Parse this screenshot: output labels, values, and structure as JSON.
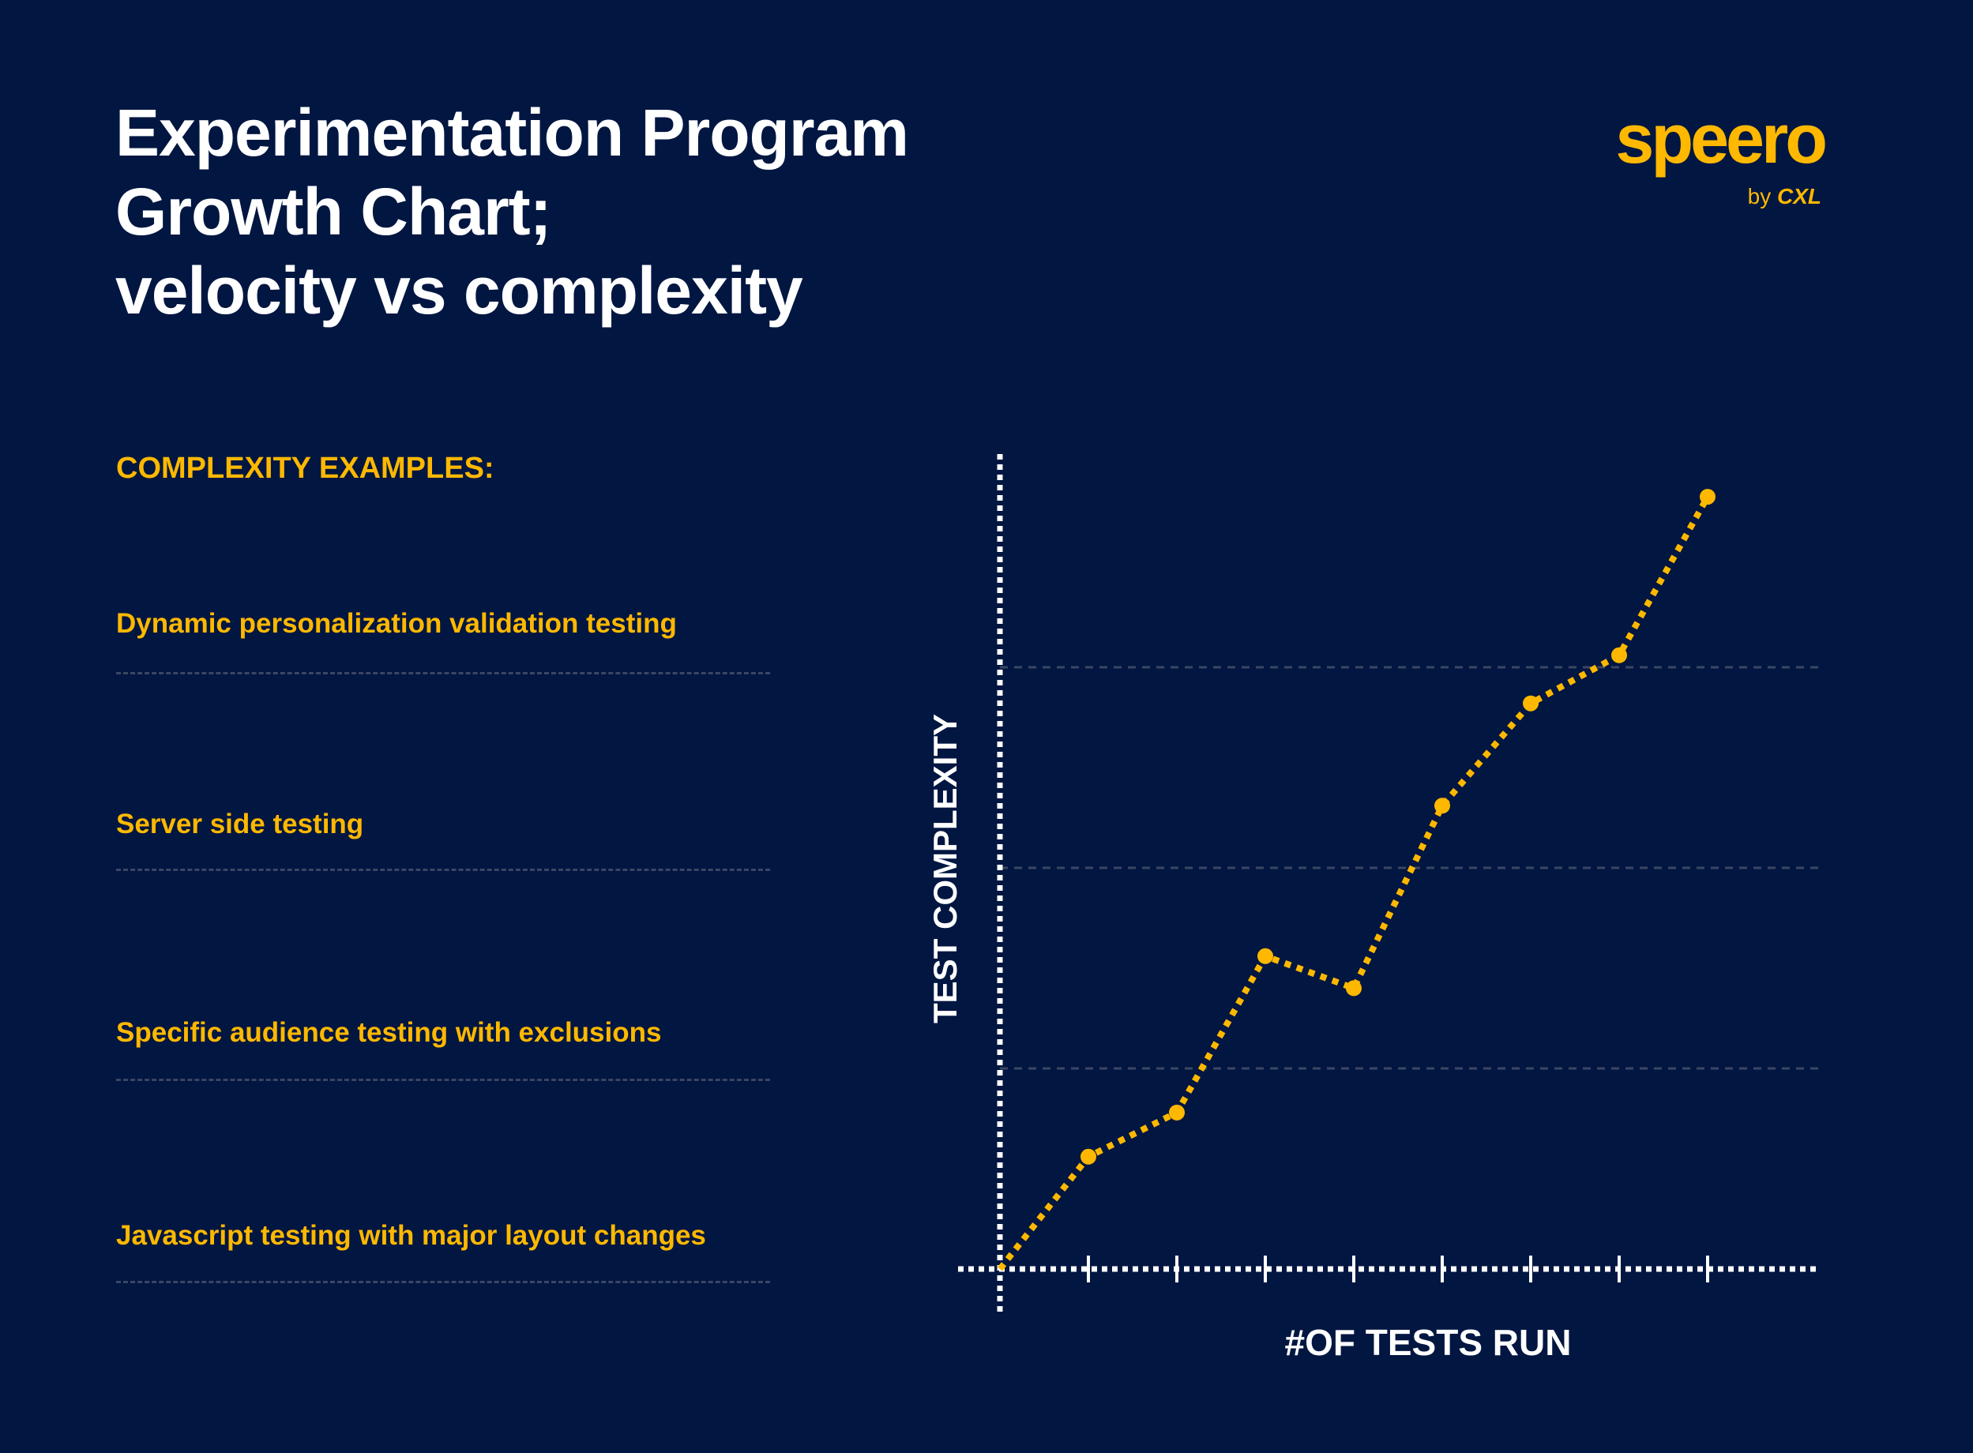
{
  "title_lines": [
    "Experimentation Program",
    "Growth Chart;",
    "velocity vs complexity"
  ],
  "logo": {
    "word": "speero",
    "by": "by",
    "brand": "CXL"
  },
  "colors": {
    "background": "#011641",
    "accent": "#FFB800",
    "axis": "#FFFFFF",
    "grid": "#3B4663"
  },
  "examples": {
    "heading": "COMPLEXITY EXAMPLES:",
    "items": [
      "Dynamic personalization validation testing",
      "Server side testing",
      "Specific audience testing with exclusions",
      "Javascript testing with major layout changes"
    ]
  },
  "chart_data": {
    "type": "line",
    "title": "",
    "xlabel": "#OF TESTS RUN",
    "ylabel": "TEST COMPLEXITY",
    "x": [
      0,
      1,
      2,
      3,
      4,
      5,
      6,
      7,
      8
    ],
    "values": [
      0,
      0.56,
      0.78,
      1.56,
      1.4,
      2.31,
      2.82,
      3.06,
      3.85
    ],
    "xlim": [
      -0.5,
      9.3
    ],
    "ylim": [
      -0.2,
      4.3
    ],
    "gridlines_y": [
      1,
      2,
      3
    ],
    "x_ticks": [
      1,
      2,
      3,
      4,
      5,
      6,
      7,
      8
    ],
    "line_style": "dotted",
    "markers": true,
    "grid": "horizontal dashed"
  }
}
